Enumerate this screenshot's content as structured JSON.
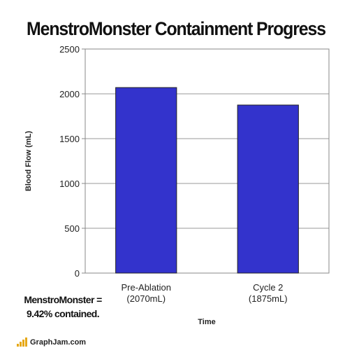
{
  "chart_data": {
    "type": "bar",
    "title": "MenstroMonster Containment Progress",
    "xlabel": "Time",
    "ylabel": "Blood Flow (mL)",
    "ylim": [
      0,
      2500
    ],
    "yticks": [
      0,
      500,
      1000,
      1500,
      2000,
      2500
    ],
    "categories": [
      "Pre-Ablation",
      "Cycle 2"
    ],
    "category_sublabels": [
      "(2070mL)",
      "(1875mL)"
    ],
    "values": [
      2070,
      1875
    ],
    "grid": true,
    "bar_color": "#3333cc",
    "plot_bg": "#ffffff",
    "annotation": [
      "MenstroMonster =",
      "9.42% contained."
    ]
  },
  "footer": {
    "logo_text": "GraphJam.com",
    "logo_color": "#e6a817"
  }
}
